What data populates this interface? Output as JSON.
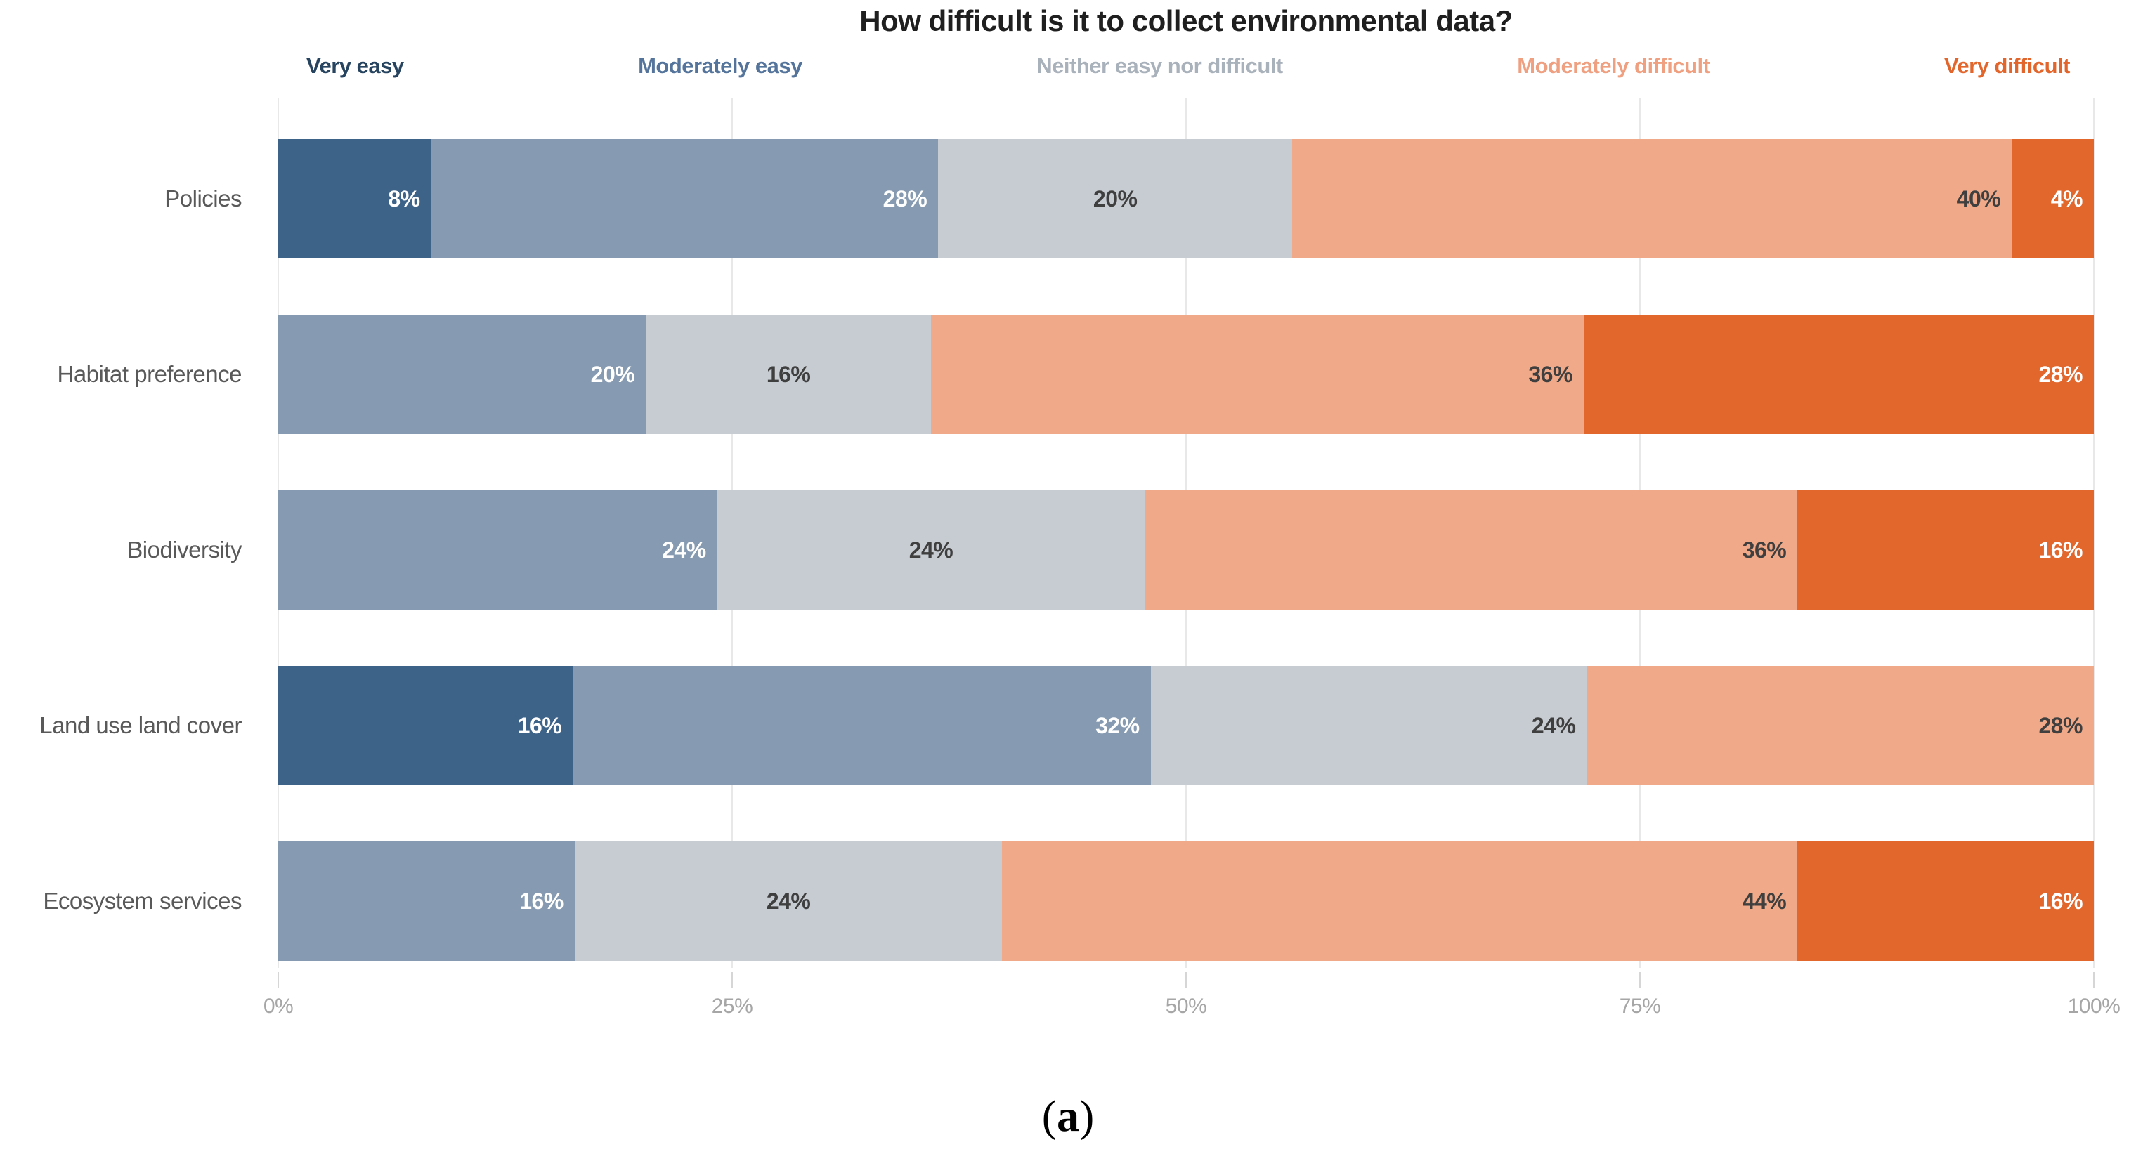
{
  "title": "How difficult is it to collect environmental data?",
  "caption": {
    "open": "(",
    "letter": "a",
    "close": ")"
  },
  "legend": [
    {
      "label": "Very easy",
      "text_color": "#26435f"
    },
    {
      "label": "Moderately easy",
      "text_color": "#54749b"
    },
    {
      "label": "Neither easy nor difficult",
      "text_color": "#a9b1bb"
    },
    {
      "label": "Moderately difficult",
      "text_color": "#efa081"
    },
    {
      "label": "Very difficult",
      "text_color": "#e2662c"
    }
  ],
  "chart_data": {
    "type": "bar",
    "orientation": "horizontal",
    "stacked": true,
    "title": "How difficult is it to collect environmental data?",
    "categories": [
      "Policies",
      "Habitat preference",
      "Biodiversity",
      "Land use land cover",
      "Ecosystem services"
    ],
    "series": [
      {
        "name": "Very easy",
        "color": "#3e6389",
        "label_color": "#ffffff",
        "values": [
          8,
          0,
          0,
          16,
          0
        ]
      },
      {
        "name": "Moderately easy",
        "color": "#869bb1",
        "label_color": "#ffffff",
        "values": [
          28,
          20,
          24,
          32,
          16
        ]
      },
      {
        "name": "Neither easy nor difficult",
        "color": "#c7ccd2",
        "label_color": "#3f3f3f",
        "values": [
          20,
          16,
          24,
          24,
          24
        ]
      },
      {
        "name": "Moderately difficult",
        "color": "#f0aa89",
        "label_color": "#3f3f3f",
        "values": [
          40,
          36,
          36,
          28,
          44
        ]
      },
      {
        "name": "Very difficult",
        "color": "#e2672d",
        "label_color": "#ffffff",
        "values": [
          4,
          28,
          16,
          0,
          16
        ]
      }
    ],
    "value_suffix": "%",
    "label_align": {
      "default": "right",
      "center_cells": [
        [
          0,
          2
        ],
        [
          1,
          2
        ],
        [
          2,
          2
        ],
        [
          4,
          2
        ]
      ]
    },
    "x_ticks": [
      {
        "label": "0%",
        "value": 0
      },
      {
        "label": "25%",
        "value": 25
      },
      {
        "label": "50%",
        "value": 50
      },
      {
        "label": "75%",
        "value": 75
      },
      {
        "label": "100%",
        "value": 100
      }
    ],
    "xlim": [
      0,
      100
    ],
    "grid": true,
    "legend_position": "top"
  }
}
